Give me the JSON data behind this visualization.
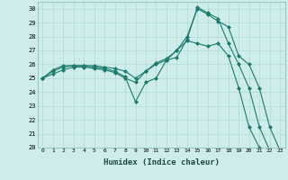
{
  "title": "",
  "xlabel": "Humidex (Indice chaleur)",
  "ylabel": "",
  "bg_color": "#ceecea",
  "line_color": "#1a7a6e",
  "xlim": [
    -0.5,
    23.5
  ],
  "ylim": [
    20,
    30.5
  ],
  "yticks": [
    20,
    21,
    22,
    23,
    24,
    25,
    26,
    27,
    28,
    29,
    30
  ],
  "xticks": [
    0,
    1,
    2,
    3,
    4,
    5,
    6,
    7,
    8,
    9,
    10,
    11,
    12,
    13,
    14,
    15,
    16,
    17,
    18,
    19,
    20,
    21,
    22,
    23
  ],
  "line1_x": [
    0,
    1,
    2,
    3,
    4,
    5,
    6,
    7,
    8,
    9,
    10,
    11,
    12,
    13,
    14,
    15,
    16,
    17,
    18,
    19,
    20,
    21,
    22,
    23
  ],
  "line1_y": [
    25.0,
    25.6,
    25.9,
    25.9,
    25.9,
    25.9,
    25.8,
    25.7,
    25.5,
    25.0,
    25.5,
    26.1,
    26.4,
    27.0,
    27.7,
    27.5,
    27.3,
    27.5,
    26.6,
    24.3,
    21.5,
    20.0,
    null,
    null
  ],
  "line2_x": [
    0,
    1,
    2,
    3,
    4,
    5,
    6,
    7,
    8,
    9,
    10,
    11,
    12,
    13,
    14,
    15,
    16,
    17,
    18,
    19,
    20,
    21,
    22,
    23
  ],
  "line2_y": [
    25.0,
    25.5,
    25.8,
    25.9,
    25.9,
    25.8,
    25.7,
    25.5,
    25.1,
    23.3,
    24.7,
    25.0,
    26.3,
    27.0,
    28.0,
    30.0,
    29.6,
    29.1,
    28.7,
    26.6,
    26.0,
    24.3,
    21.5,
    19.8
  ],
  "line3_x": [
    0,
    1,
    2,
    3,
    4,
    5,
    6,
    7,
    8,
    9,
    10,
    11,
    12,
    13,
    14,
    15,
    16,
    17,
    18,
    19,
    20,
    21,
    22,
    23
  ],
  "line3_y": [
    25.0,
    25.3,
    25.6,
    25.8,
    25.8,
    25.7,
    25.6,
    25.4,
    25.0,
    24.7,
    25.5,
    26.0,
    26.3,
    26.5,
    27.8,
    30.1,
    29.7,
    29.3,
    27.5,
    26.0,
    24.3,
    21.5,
    19.8,
    null
  ]
}
